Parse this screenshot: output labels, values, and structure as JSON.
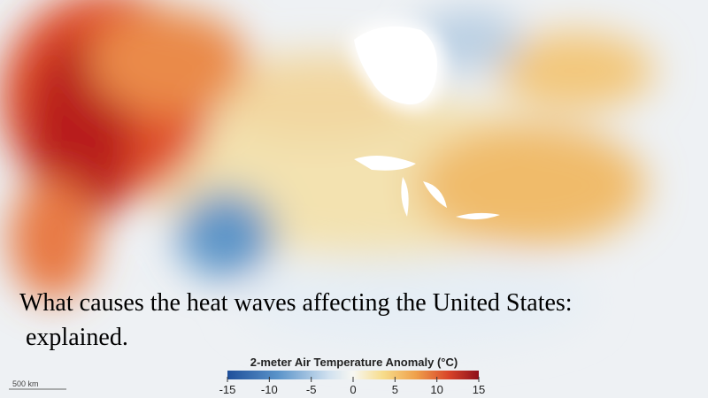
{
  "map": {
    "caption": [
      "What causes the heat waves affecting the United States:",
      " explained."
    ]
  },
  "legend": {
    "title": "2-meter Air Temperature Anomaly (°C)",
    "lim": [
      -15,
      15
    ],
    "ticks": [
      -15,
      -10,
      -5,
      0,
      5,
      10,
      15
    ]
  },
  "scale_bar": {
    "label": "500 km"
  }
}
